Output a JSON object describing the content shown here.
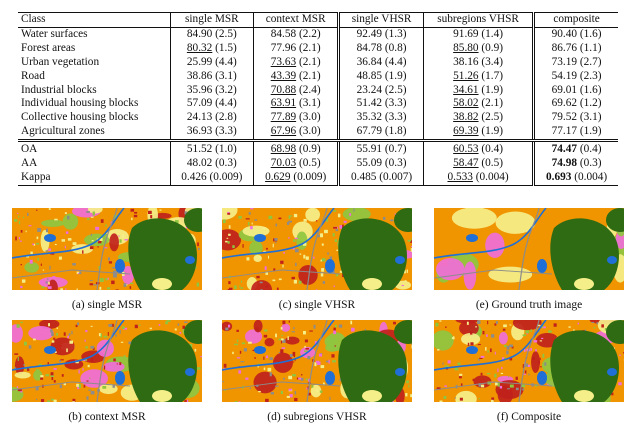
{
  "table": {
    "headers": [
      "Class",
      "single MSR",
      "context MSR",
      "single VHSR",
      "subregions VHSR",
      "composite"
    ],
    "class_rows": [
      {
        "label": "Water surfaces",
        "cells": [
          {
            "v": "84.90",
            "s": "(2.5)",
            "u": false,
            "b": false
          },
          {
            "v": "84.58",
            "s": "(2.2)",
            "u": false,
            "b": false
          },
          {
            "v": "92.49",
            "s": "(1.3)",
            "u": false,
            "b": false
          },
          {
            "v": "91.69",
            "s": "(1.4)",
            "u": false,
            "b": false
          },
          {
            "v": "90.40",
            "s": "(1.6)",
            "u": false,
            "b": false
          }
        ]
      },
      {
        "label": "Forest areas",
        "cells": [
          {
            "v": "80.32",
            "s": "(1.5)",
            "u": true,
            "b": false
          },
          {
            "v": "77.96",
            "s": "(2.1)",
            "u": false,
            "b": false
          },
          {
            "v": "84.78",
            "s": "(0.8)",
            "u": false,
            "b": false
          },
          {
            "v": "85.80",
            "s": "(0.9)",
            "u": true,
            "b": false
          },
          {
            "v": "86.76",
            "s": "(1.1)",
            "u": false,
            "b": false
          }
        ]
      },
      {
        "label": "Urban vegetation",
        "cells": [
          {
            "v": "25.99",
            "s": "(4.4)",
            "u": false,
            "b": false
          },
          {
            "v": "73.63",
            "s": "(2.1)",
            "u": true,
            "b": false
          },
          {
            "v": "36.84",
            "s": "(4.4)",
            "u": false,
            "b": false
          },
          {
            "v": "38.16",
            "s": "(3.4)",
            "u": false,
            "b": false
          },
          {
            "v": "73.19",
            "s": "(2.7)",
            "u": false,
            "b": false
          }
        ]
      },
      {
        "label": "Road",
        "cells": [
          {
            "v": "38.86",
            "s": "(3.1)",
            "u": false,
            "b": false
          },
          {
            "v": "43.39",
            "s": "(2.1)",
            "u": true,
            "b": false
          },
          {
            "v": "48.85",
            "s": "(1.9)",
            "u": false,
            "b": false
          },
          {
            "v": "51.26",
            "s": "(1.7)",
            "u": true,
            "b": false
          },
          {
            "v": "54.19",
            "s": "(2.3)",
            "u": false,
            "b": false
          }
        ]
      },
      {
        "label": "Industrial blocks",
        "cells": [
          {
            "v": "35.96",
            "s": "(3.2)",
            "u": false,
            "b": false
          },
          {
            "v": "70.88",
            "s": "(2.4)",
            "u": true,
            "b": false
          },
          {
            "v": "23.24",
            "s": "(2.5)",
            "u": false,
            "b": false
          },
          {
            "v": "34.61",
            "s": "(1.9)",
            "u": true,
            "b": false
          },
          {
            "v": "69.01",
            "s": "(1.6)",
            "u": false,
            "b": false
          }
        ]
      },
      {
        "label": "Individual housing blocks",
        "cells": [
          {
            "v": "57.09",
            "s": "(4.4)",
            "u": false,
            "b": false
          },
          {
            "v": "63.91",
            "s": "(3.1)",
            "u": true,
            "b": false
          },
          {
            "v": "51.42",
            "s": "(3.3)",
            "u": false,
            "b": false
          },
          {
            "v": "58.02",
            "s": "(2.1)",
            "u": true,
            "b": false
          },
          {
            "v": "69.62",
            "s": "(1.2)",
            "u": false,
            "b": false
          }
        ]
      },
      {
        "label": "Collective housing blocks",
        "cells": [
          {
            "v": "24.13",
            "s": "(2.8)",
            "u": false,
            "b": false
          },
          {
            "v": "77.89",
            "s": "(3.0)",
            "u": true,
            "b": false
          },
          {
            "v": "35.32",
            "s": "(3.3)",
            "u": false,
            "b": false
          },
          {
            "v": "38.82",
            "s": "(2.5)",
            "u": true,
            "b": false
          },
          {
            "v": "79.52",
            "s": "(3.1)",
            "u": false,
            "b": false
          }
        ]
      },
      {
        "label": "Agricultural zones",
        "cells": [
          {
            "v": "36.93",
            "s": "(3.3)",
            "u": false,
            "b": false
          },
          {
            "v": "67.96",
            "s": "(3.0)",
            "u": true,
            "b": false
          },
          {
            "v": "67.79",
            "s": "(1.8)",
            "u": false,
            "b": false
          },
          {
            "v": "69.39",
            "s": "(1.9)",
            "u": true,
            "b": false
          },
          {
            "v": "77.17",
            "s": "(1.9)",
            "u": false,
            "b": false
          }
        ]
      }
    ],
    "metric_rows": [
      {
        "label": "OA",
        "cells": [
          {
            "v": "51.52",
            "s": "(1.0)",
            "u": false,
            "b": false
          },
          {
            "v": "68.98",
            "s": "(0.9)",
            "u": true,
            "b": false
          },
          {
            "v": "55.91",
            "s": "(0.7)",
            "u": false,
            "b": false
          },
          {
            "v": "60.53",
            "s": "(0.4)",
            "u": true,
            "b": false
          },
          {
            "v": "74.47",
            "s": "(0.4)",
            "u": false,
            "b": true
          }
        ]
      },
      {
        "label": "AA",
        "cells": [
          {
            "v": "48.02",
            "s": "(0.3)",
            "u": false,
            "b": false
          },
          {
            "v": "70.03",
            "s": "(0.5)",
            "u": true,
            "b": false
          },
          {
            "v": "55.09",
            "s": "(0.3)",
            "u": false,
            "b": false
          },
          {
            "v": "58.47",
            "s": "(0.5)",
            "u": true,
            "b": false
          },
          {
            "v": "74.98",
            "s": "(0.3)",
            "u": false,
            "b": true
          }
        ]
      },
      {
        "label": "Kappa",
        "cells": [
          {
            "v": "0.426",
            "s": "(0.009)",
            "u": false,
            "b": false
          },
          {
            "v": "0.629",
            "s": "(0.009)",
            "u": true,
            "b": false
          },
          {
            "v": "0.485",
            "s": "(0.007)",
            "u": false,
            "b": false
          },
          {
            "v": "0.533",
            "s": "(0.004)",
            "u": true,
            "b": false
          },
          {
            "v": "0.693",
            "s": "(0.004)",
            "u": false,
            "b": true
          }
        ]
      }
    ]
  },
  "figures": [
    {
      "id": "a",
      "caption": "(a) single MSR"
    },
    {
      "id": "c",
      "caption": "(c) single VHSR"
    },
    {
      "id": "e",
      "caption": "(e) Ground truth image"
    },
    {
      "id": "b",
      "caption": "(b) context MSR"
    },
    {
      "id": "d",
      "caption": "(d) subregions VHSR"
    },
    {
      "id": "f",
      "caption": "(f) Composite"
    }
  ],
  "palette": {
    "water": "#1f6fd6",
    "forest": "#2f6b12",
    "urban_vegetation": "#8fc640",
    "road": "#8c8c8c",
    "industrial": "#ef6ed9",
    "individual_housing": "#f09400",
    "collective_housing": "#c0211b",
    "agricultural": "#f5ef8a"
  }
}
